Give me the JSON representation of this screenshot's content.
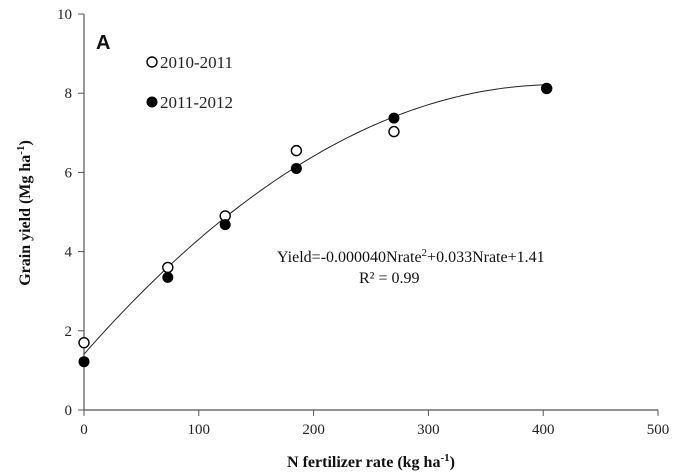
{
  "chart_data": {
    "type": "scatter",
    "panel_label": "A",
    "xlabel": {
      "main": "N fertilizer  rate (kg ha",
      "sup": "-1",
      "close": ")"
    },
    "ylabel": {
      "main": "Grain yield (Mg ha",
      "sup": "-1",
      "close": ")"
    },
    "xlim": [
      0,
      500
    ],
    "ylim": [
      0,
      10
    ],
    "xticks": [
      0,
      100,
      200,
      300,
      400,
      500
    ],
    "yticks": [
      0,
      2,
      4,
      6,
      8,
      10
    ],
    "grid": false,
    "legend_position": "top-left",
    "series": [
      {
        "name": "2010-2011",
        "marker": "open-circle",
        "color": "#000000",
        "x": [
          0,
          73,
          123,
          185,
          270,
          403
        ],
        "y": [
          1.7,
          3.6,
          4.9,
          6.55,
          7.03,
          8.12
        ]
      },
      {
        "name": "2011-2012",
        "marker": "filled-circle",
        "color": "#000000",
        "x": [
          0,
          73,
          123,
          185,
          270,
          403
        ],
        "y": [
          1.22,
          3.35,
          4.68,
          6.1,
          7.37,
          8.12
        ]
      }
    ],
    "fit": {
      "coefficients": {
        "a": -4e-05,
        "b": 0.033,
        "c": 1.41
      },
      "x_range": [
        0,
        403
      ],
      "equation": {
        "pre": "Yield=-0.000040Nrate",
        "sup": "2",
        "post": "+0.033Nrate+1.41"
      },
      "r2_text": "R² = 0.99"
    }
  }
}
